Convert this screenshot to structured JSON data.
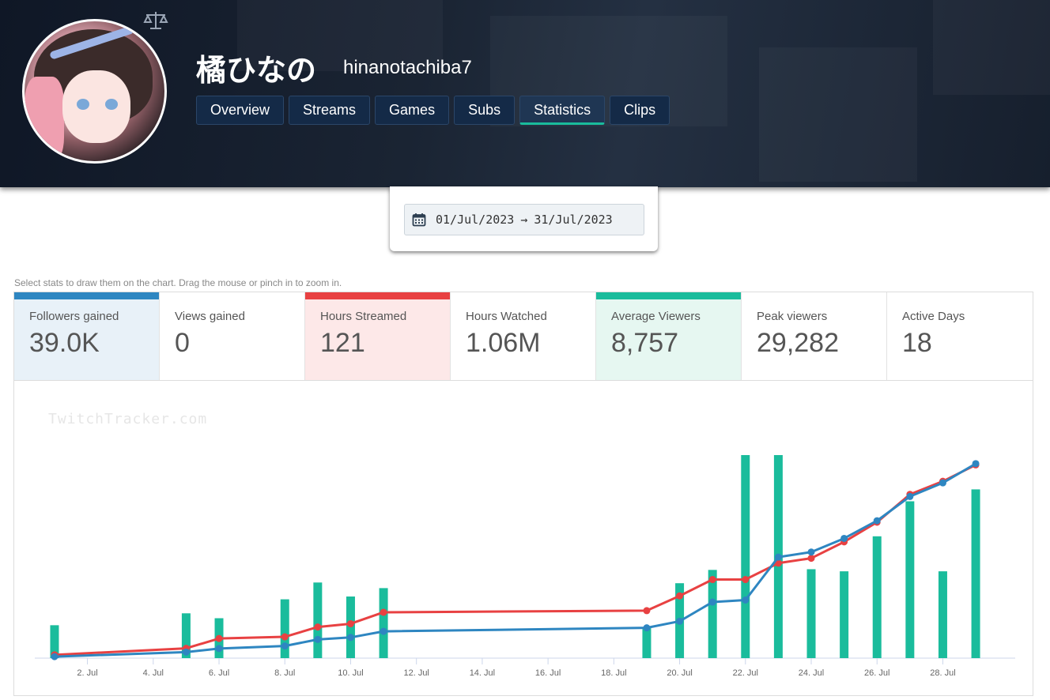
{
  "profile": {
    "display_name": "橘ひなの",
    "login": "hinanotachiba7"
  },
  "tabs": [
    {
      "label": "Overview",
      "active": false
    },
    {
      "label": "Streams",
      "active": false
    },
    {
      "label": "Games",
      "active": false
    },
    {
      "label": "Subs",
      "active": false
    },
    {
      "label": "Statistics",
      "active": true
    },
    {
      "label": "Clips",
      "active": false
    }
  ],
  "date_range": {
    "start": "01/Jul/2023",
    "arrow": "→",
    "end": "31/Jul/2023"
  },
  "hint": "Select stats to draw them on the chart. Drag the mouse or pinch in to zoom in.",
  "stats": [
    {
      "label": "Followers gained",
      "value": "39.0K",
      "selected": true,
      "color": "#2e86c1"
    },
    {
      "label": "Views gained",
      "value": "0",
      "selected": false
    },
    {
      "label": "Hours Streamed",
      "value": "121",
      "selected": true,
      "color": "#e84142"
    },
    {
      "label": "Hours Watched",
      "value": "1.06M",
      "selected": false
    },
    {
      "label": "Average Viewers",
      "value": "8,757",
      "selected": true,
      "color": "#1abc9c"
    },
    {
      "label": "Peak viewers",
      "value": "29,282",
      "selected": false
    },
    {
      "label": "Active Days",
      "value": "18",
      "selected": false
    }
  ],
  "watermark": "TwitchTracker.com",
  "chart_data": {
    "type": "bar+line",
    "x_range_days": [
      0.4,
      30.2
    ],
    "x_ticks": [
      {
        "day": 2,
        "label": "2. Jul"
      },
      {
        "day": 4,
        "label": "4. Jul"
      },
      {
        "day": 6,
        "label": "6. Jul"
      },
      {
        "day": 8,
        "label": "8. Jul"
      },
      {
        "day": 10,
        "label": "10. Jul"
      },
      {
        "day": 12,
        "label": "12. Jul"
      },
      {
        "day": 14,
        "label": "14. Jul"
      },
      {
        "day": 16,
        "label": "16. Jul"
      },
      {
        "day": 18,
        "label": "18. Jul"
      },
      {
        "day": 20,
        "label": "20. Jul"
      },
      {
        "day": 22,
        "label": "22. Jul"
      },
      {
        "day": 24,
        "label": "24. Jul"
      },
      {
        "day": 26,
        "label": "26. Jul"
      },
      {
        "day": 28,
        "label": "28. Jul"
      }
    ],
    "grid": false,
    "legend": "none",
    "series": [
      {
        "kind": "bar",
        "color": "#1abc9c",
        "ymax": 29000,
        "points": [
          [
            1,
            4700
          ],
          [
            5,
            6400
          ],
          [
            6,
            5700
          ],
          [
            8,
            8400
          ],
          [
            9,
            10800
          ],
          [
            10,
            8800
          ],
          [
            11,
            10000
          ],
          [
            19,
            4300
          ],
          [
            20,
            10700
          ],
          [
            21,
            12600
          ],
          [
            22,
            29000
          ],
          [
            23,
            29000
          ],
          [
            24,
            12700
          ],
          [
            25,
            12400
          ],
          [
            26,
            17400
          ],
          [
            27,
            22400
          ],
          [
            28,
            12400
          ],
          [
            29,
            24100
          ]
        ]
      },
      {
        "kind": "line",
        "color": "#e84142",
        "ymax": 124,
        "points": [
          [
            1,
            2
          ],
          [
            5,
            6
          ],
          [
            6,
            12
          ],
          [
            8,
            13
          ],
          [
            9,
            19
          ],
          [
            10,
            21
          ],
          [
            11,
            28
          ],
          [
            19,
            29
          ],
          [
            20,
            38
          ],
          [
            21,
            48
          ],
          [
            22,
            48
          ],
          [
            23,
            58
          ],
          [
            24,
            61
          ],
          [
            25,
            71
          ],
          [
            26,
            83
          ],
          [
            27,
            100
          ],
          [
            28,
            108
          ],
          [
            29,
            118
          ]
        ]
      },
      {
        "kind": "line",
        "color": "#2e86c1",
        "ymax": 40200,
        "points": [
          [
            1,
            300
          ],
          [
            5,
            1200
          ],
          [
            6,
            1900
          ],
          [
            8,
            2400
          ],
          [
            9,
            3700
          ],
          [
            10,
            4100
          ],
          [
            11,
            5300
          ],
          [
            19,
            6000
          ],
          [
            20,
            7300
          ],
          [
            21,
            11100
          ],
          [
            22,
            11500
          ],
          [
            23,
            20000
          ],
          [
            24,
            21000
          ],
          [
            25,
            23700
          ],
          [
            26,
            27200
          ],
          [
            27,
            32000
          ],
          [
            28,
            34700
          ],
          [
            29,
            38500
          ]
        ]
      }
    ]
  }
}
